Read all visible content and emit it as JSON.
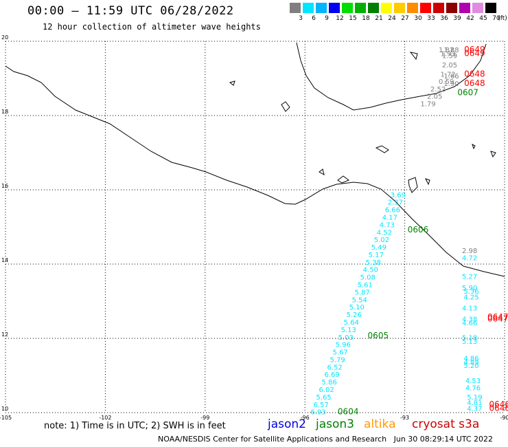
{
  "header": {
    "title": "00:00 – 11:59 UTC 06/28/2022",
    "subtitle": "12 hour collection of altimeter wave heights"
  },
  "color_scale": {
    "unit_label": "(ft)",
    "bins": [
      {
        "label": "3",
        "color": "#7f7f7f"
      },
      {
        "label": "6",
        "color": "#00e5ff"
      },
      {
        "label": "9",
        "color": "#00b4ff"
      },
      {
        "label": "12",
        "color": "#0000ee"
      },
      {
        "label": "15",
        "color": "#00dd00"
      },
      {
        "label": "18",
        "color": "#00b000"
      },
      {
        "label": "21",
        "color": "#008000"
      },
      {
        "label": "24",
        "color": "#ffff00"
      },
      {
        "label": "27",
        "color": "#ffcc00"
      },
      {
        "label": "30",
        "color": "#ff8c00"
      },
      {
        "label": "33",
        "color": "#ff0000"
      },
      {
        "label": "36",
        "color": "#cc0000"
      },
      {
        "label": "39",
        "color": "#8b0000"
      },
      {
        "label": "42",
        "color": "#b000b0"
      },
      {
        "label": "45",
        "color": "#e08ce0"
      },
      {
        "label": "70",
        "color": "#000000"
      }
    ]
  },
  "map": {
    "lat_labels": [
      "20",
      "18",
      "16",
      "14",
      "12",
      "10"
    ],
    "lon_labels": [
      "-105",
      "-102",
      "-99",
      "-96",
      "-93",
      "-90"
    ],
    "lat_range": [
      10,
      20
    ],
    "lon_range": [
      -105,
      -90
    ]
  },
  "tracks": [
    {
      "satellite": "jason3",
      "time_label": "0604",
      "time_color": "#008000",
      "lon_start": -95.6,
      "lat_start": 9.95,
      "lon_end": -93.2,
      "lat_end": 15.8,
      "color": "#00e5ff",
      "values": [
        "6.93",
        "6.57",
        "5.65",
        "6.02",
        "5.86",
        "6.69",
        "6.52",
        "5.79",
        "5.67",
        "5.96",
        "5.03",
        "5.13",
        "5.64",
        "5.26",
        "5.10",
        "5.54",
        "5.87",
        "5.61",
        "5.08",
        "4.50",
        "5.38",
        "5.17",
        "5.49",
        "5.02",
        "4.52",
        "4.73",
        "4.17",
        "6.66",
        "2.37",
        "3.69"
      ]
    }
  ],
  "time_labels": [
    {
      "text": "0604",
      "color": "#008000",
      "lon": -94.7,
      "lat": 9.95
    },
    {
      "text": "0605",
      "color": "#008000",
      "lon": -93.8,
      "lat": 12.0
    },
    {
      "text": "0606",
      "color": "#008000",
      "lon": -92.6,
      "lat": 14.85
    },
    {
      "text": "0607",
      "color": "#008000",
      "lon": -91.1,
      "lat": 18.55
    },
    {
      "text": "0649",
      "color": "#ff0000",
      "lon": -90.9,
      "lat": 19.7
    },
    {
      "text": "0649",
      "color": "#ff0000",
      "lon": -90.9,
      "lat": 19.6
    },
    {
      "text": "0648",
      "color": "#ff0000",
      "lon": -90.9,
      "lat": 19.05
    },
    {
      "text": "0648",
      "color": "#ff0000",
      "lon": -90.9,
      "lat": 18.8
    },
    {
      "text": "0647",
      "color": "#ff0000",
      "lon": -90.2,
      "lat": 12.5
    },
    {
      "text": "0647",
      "color": "#ff0000",
      "lon": -90.2,
      "lat": 12.45
    },
    {
      "text": "0646",
      "color": "#ff0000",
      "lon": -90.15,
      "lat": 10.15
    },
    {
      "text": "0646",
      "color": "#ff0000",
      "lon": -90.15,
      "lat": 10.05
    }
  ],
  "point_labels": [
    {
      "text": "1.88",
      "color": "#7f7f7f",
      "lon": -91.6,
      "lat": 19.7
    },
    {
      "text": "1.87",
      "color": "#7f7f7f",
      "lon": -91.75,
      "lat": 19.7
    },
    {
      "text": "1.93",
      "color": "#7f7f7f",
      "lon": -91.7,
      "lat": 19.6
    },
    {
      "text": "1.59",
      "color": "#7f7f7f",
      "lon": -91.65,
      "lat": 19.55
    },
    {
      "text": "2.05",
      "color": "#7f7f7f",
      "lon": -91.65,
      "lat": 19.3
    },
    {
      "text": "1.72",
      "color": "#7f7f7f",
      "lon": -91.7,
      "lat": 19.05
    },
    {
      "text": "1.66",
      "color": "#7f7f7f",
      "lon": -91.6,
      "lat": 19.0
    },
    {
      "text": "0.59",
      "color": "#7f7f7f",
      "lon": -91.75,
      "lat": 18.85
    },
    {
      "text": "1.90",
      "color": "#7f7f7f",
      "lon": -91.6,
      "lat": 18.8
    },
    {
      "text": "2.52",
      "color": "#7f7f7f",
      "lon": -92.0,
      "lat": 18.65
    },
    {
      "text": "2.05",
      "color": "#7f7f7f",
      "lon": -92.1,
      "lat": 18.45
    },
    {
      "text": "1.79",
      "color": "#7f7f7f",
      "lon": -92.3,
      "lat": 18.25
    },
    {
      "text": "2.98",
      "color": "#7f7f7f",
      "lon": -91.05,
      "lat": 14.3
    },
    {
      "text": "4.72",
      "color": "#00e5ff",
      "lon": -91.05,
      "lat": 14.1
    },
    {
      "text": "5.27",
      "color": "#00e5ff",
      "lon": -91.05,
      "lat": 13.6
    },
    {
      "text": "5.90",
      "color": "#00e5ff",
      "lon": -91.05,
      "lat": 13.3
    },
    {
      "text": "5.36",
      "color": "#00e5ff",
      "lon": -91.0,
      "lat": 13.2
    },
    {
      "text": "4.25",
      "color": "#00e5ff",
      "lon": -91.0,
      "lat": 13.05
    },
    {
      "text": "4.13",
      "color": "#00e5ff",
      "lon": -91.05,
      "lat": 12.75
    },
    {
      "text": "4.38",
      "color": "#00e5ff",
      "lon": -91.05,
      "lat": 12.45
    },
    {
      "text": "4.66",
      "color": "#00e5ff",
      "lon": -91.05,
      "lat": 12.35
    },
    {
      "text": "5.18",
      "color": "#00e5ff",
      "lon": -91.05,
      "lat": 11.95
    },
    {
      "text": "5.13",
      "color": "#00e5ff",
      "lon": -91.05,
      "lat": 11.85
    },
    {
      "text": "4.86",
      "color": "#00e5ff",
      "lon": -91.0,
      "lat": 11.4
    },
    {
      "text": "4.89",
      "color": "#00e5ff",
      "lon": -91.0,
      "lat": 11.3
    },
    {
      "text": "5.20",
      "color": "#00e5ff",
      "lon": -91.0,
      "lat": 11.2
    },
    {
      "text": "4.53",
      "color": "#00e5ff",
      "lon": -90.95,
      "lat": 10.8
    },
    {
      "text": "4.76",
      "color": "#00e5ff",
      "lon": -90.95,
      "lat": 10.6
    },
    {
      "text": "5.19",
      "color": "#00e5ff",
      "lon": -90.9,
      "lat": 10.35
    },
    {
      "text": "4.81",
      "color": "#00e5ff",
      "lon": -90.9,
      "lat": 10.2
    },
    {
      "text": "4.37",
      "color": "#00e5ff",
      "lon": -90.9,
      "lat": 10.05
    }
  ],
  "legend": {
    "note": "note: 1) Time is in UTC; 2) SWH is in feet",
    "satellites": [
      {
        "name": "jason2",
        "color": "#0000dd"
      },
      {
        "name": "jason3",
        "color": "#008000"
      },
      {
        "name": "altika",
        "color": "#ff9900"
      },
      {
        "name": "cryosat s3a",
        "color": "#cc0000"
      }
    ]
  },
  "footer": {
    "credit": "NOAA/NESDIS Center for Satellite Applications and Research   Jun 30 08:29:14 UTC 2022"
  }
}
